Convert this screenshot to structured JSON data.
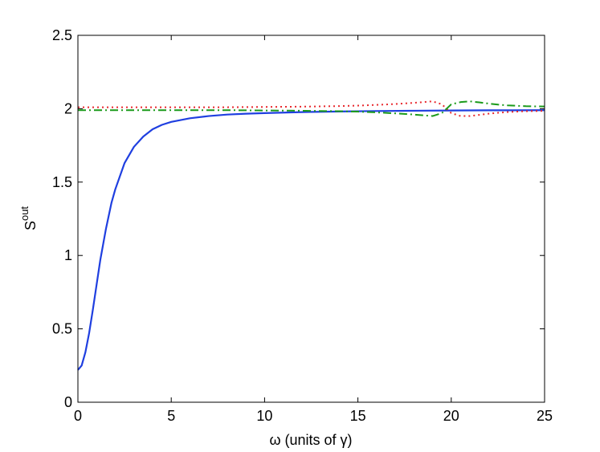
{
  "chart_data": {
    "type": "line",
    "xlabel": "ω (units of γ)",
    "ylabel": {
      "base": "S",
      "superscript": "out"
    },
    "xlim": [
      0,
      25
    ],
    "ylim": [
      0,
      2.5
    ],
    "xticks": [
      0,
      5,
      10,
      15,
      20,
      25
    ],
    "yticks": [
      0,
      0.5,
      1,
      1.5,
      2,
      2.5
    ],
    "xtick_labels": [
      "0",
      "5",
      "10",
      "15",
      "20",
      "25"
    ],
    "ytick_labels": [
      "0",
      "0.5",
      "1",
      "1.5",
      "2",
      "2.5"
    ],
    "grid": false,
    "legend": "none",
    "series": [
      {
        "style": "solid",
        "color": "#1f3fe0",
        "x": [
          0,
          0.2,
          0.4,
          0.6,
          0.8,
          1.0,
          1.2,
          1.5,
          1.8,
          2.0,
          2.5,
          3.0,
          3.5,
          4.0,
          4.5,
          5.0,
          6.0,
          7.0,
          8.0,
          9.0,
          10.0,
          12.0,
          14.0,
          16.0,
          18.0,
          20.0,
          22.0,
          25.0
        ],
        "y": [
          0.22,
          0.25,
          0.34,
          0.47,
          0.63,
          0.8,
          0.97,
          1.18,
          1.36,
          1.45,
          1.63,
          1.74,
          1.81,
          1.86,
          1.89,
          1.91,
          1.935,
          1.95,
          1.96,
          1.966,
          1.97,
          1.977,
          1.981,
          1.984,
          1.986,
          1.988,
          1.989,
          1.99
        ]
      },
      {
        "style": "dotted",
        "color": "#e8282d",
        "x": [
          0,
          2,
          4,
          6,
          8,
          10,
          12,
          14,
          15,
          16,
          17,
          18,
          18.5,
          19.0,
          19.5,
          20.0,
          20.5,
          21.0,
          21.5,
          22.0,
          22.5,
          23.0,
          24.0,
          25.0
        ],
        "y": [
          2.01,
          2.01,
          2.01,
          2.01,
          2.01,
          2.012,
          2.014,
          2.018,
          2.021,
          2.026,
          2.032,
          2.04,
          2.045,
          2.05,
          2.03,
          1.97,
          1.95,
          1.95,
          1.958,
          1.966,
          1.972,
          1.977,
          1.983,
          1.985
        ]
      },
      {
        "style": "dashdot",
        "color": "#1a9a1a",
        "x": [
          0,
          2,
          4,
          6,
          8,
          10,
          12,
          14,
          15,
          16,
          17,
          18,
          18.5,
          19.0,
          19.5,
          20.0,
          20.5,
          21.0,
          21.5,
          22.0,
          22.5,
          23.0,
          24.0,
          25.0
        ],
        "y": [
          1.99,
          1.99,
          1.99,
          1.99,
          1.99,
          1.988,
          1.986,
          1.983,
          1.98,
          1.975,
          1.968,
          1.96,
          1.955,
          1.95,
          1.97,
          2.03,
          2.045,
          2.05,
          2.043,
          2.035,
          2.028,
          2.023,
          2.017,
          2.015
        ]
      }
    ]
  }
}
